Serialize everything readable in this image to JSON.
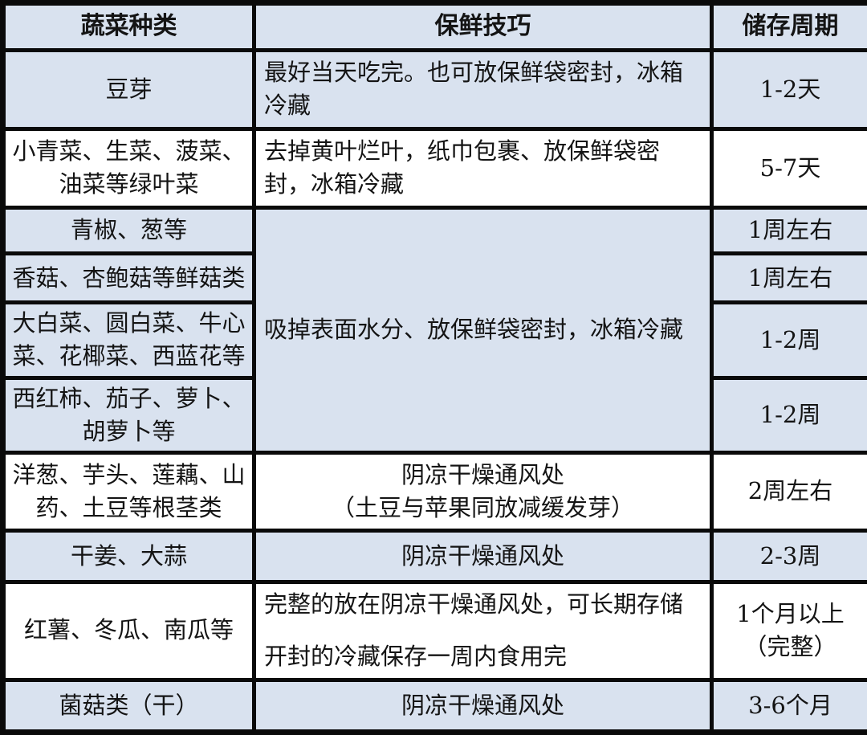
{
  "colors": {
    "row_blue": "#d9e2ef",
    "row_white": "#ffffff",
    "border_black": "#0a0a0a",
    "text": "#141414"
  },
  "header": {
    "category": "蔬菜种类",
    "tip": "保鲜技巧",
    "period": "储存周期"
  },
  "merged_tip": "吸掉表面水分、放保鲜袋密封，冰箱冷藏",
  "rows": [
    {
      "category": "豆芽",
      "tip": "最好当天吃完。也可放保鲜袋密封，冰箱冷藏",
      "period": "1-2天"
    },
    {
      "category": "小青菜、生菜、菠菜、油菜等绿叶菜",
      "tip": "去掉黄叶烂叶，纸巾包裹、放保鲜袋密封，冰箱冷藏",
      "period": "5-7天"
    },
    {
      "category": "青椒、葱等",
      "period": "1周左右"
    },
    {
      "category": "香菇、杏鲍菇等鲜菇类",
      "period": "1周左右"
    },
    {
      "category": "大白菜、圆白菜、牛心菜、花椰菜、西蓝花等",
      "period": "1-2周"
    },
    {
      "category": "西红柿、茄子、萝卜、胡萝卜等",
      "period": "1-2周"
    },
    {
      "category": "洋葱、芋头、莲藕、山药、土豆等根茎类",
      "tip1": "阴凉干燥通风处",
      "tip2": "（土豆与苹果同放减缓发芽）",
      "period": "2周左右"
    },
    {
      "category": "干姜、大蒜",
      "tip": "阴凉干燥通风处",
      "period": "2-3周"
    },
    {
      "category": "红薯、冬瓜、南瓜等",
      "tip1": "完整的放在阴凉干燥通风处，可长期存储",
      "tip2": "开封的冷藏保存一周内食用完",
      "period1": "1个月以上",
      "period2": "（完整）"
    },
    {
      "category": "菌菇类（干）",
      "tip": "阴凉干燥通风处",
      "period": "3-6个月"
    }
  ]
}
